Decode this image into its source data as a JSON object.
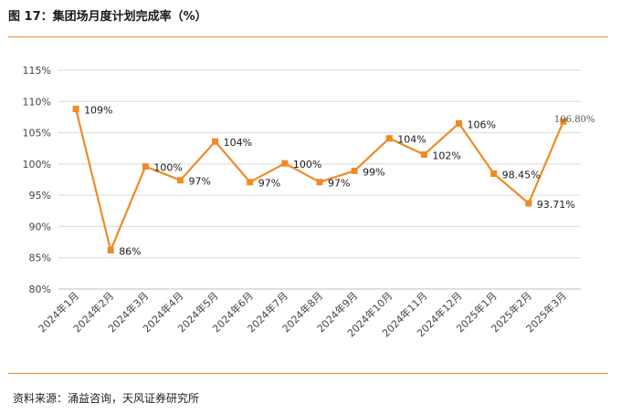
{
  "header": {
    "title": "图 17：集团场月度计划完成率（%）"
  },
  "footer": {
    "source": "资料来源：涌益咨询，天风证券研究所"
  },
  "colors": {
    "line": "#F08A24",
    "accent_rule": "#E08A2C",
    "grid": "#D9D9D9"
  },
  "chart_data": {
    "type": "line",
    "title": "集团场月度计划完成率（%）",
    "categories": [
      "2024年1月",
      "2024年2月",
      "2024年3月",
      "2024年4月",
      "2024年5月",
      "2024年6月",
      "2024年7月",
      "2024年8月",
      "2024年9月",
      "2024年10月",
      "2024年11月",
      "2024年12月",
      "2025年1月",
      "2025年2月",
      "2025年3月"
    ],
    "series": [
      {
        "values": [
          108.8,
          86.2,
          99.6,
          97.4,
          103.6,
          97.1,
          100.1,
          97.1,
          98.9,
          104.1,
          101.5,
          106.5,
          98.45,
          93.71,
          106.8
        ],
        "labels": [
          "109%",
          "86%",
          "100%",
          "97%",
          "104%",
          "97%",
          "100%",
          "97%",
          "99%",
          "104%",
          "102%",
          "106%",
          "98.45%",
          "93.71%",
          "106.80%"
        ]
      }
    ],
    "yticks": [
      "80%",
      "85%",
      "90%",
      "95%",
      "100%",
      "105%",
      "110%",
      "115%"
    ],
    "ylim": [
      80,
      115
    ],
    "grid": true,
    "legend": "none",
    "marker": "square"
  }
}
